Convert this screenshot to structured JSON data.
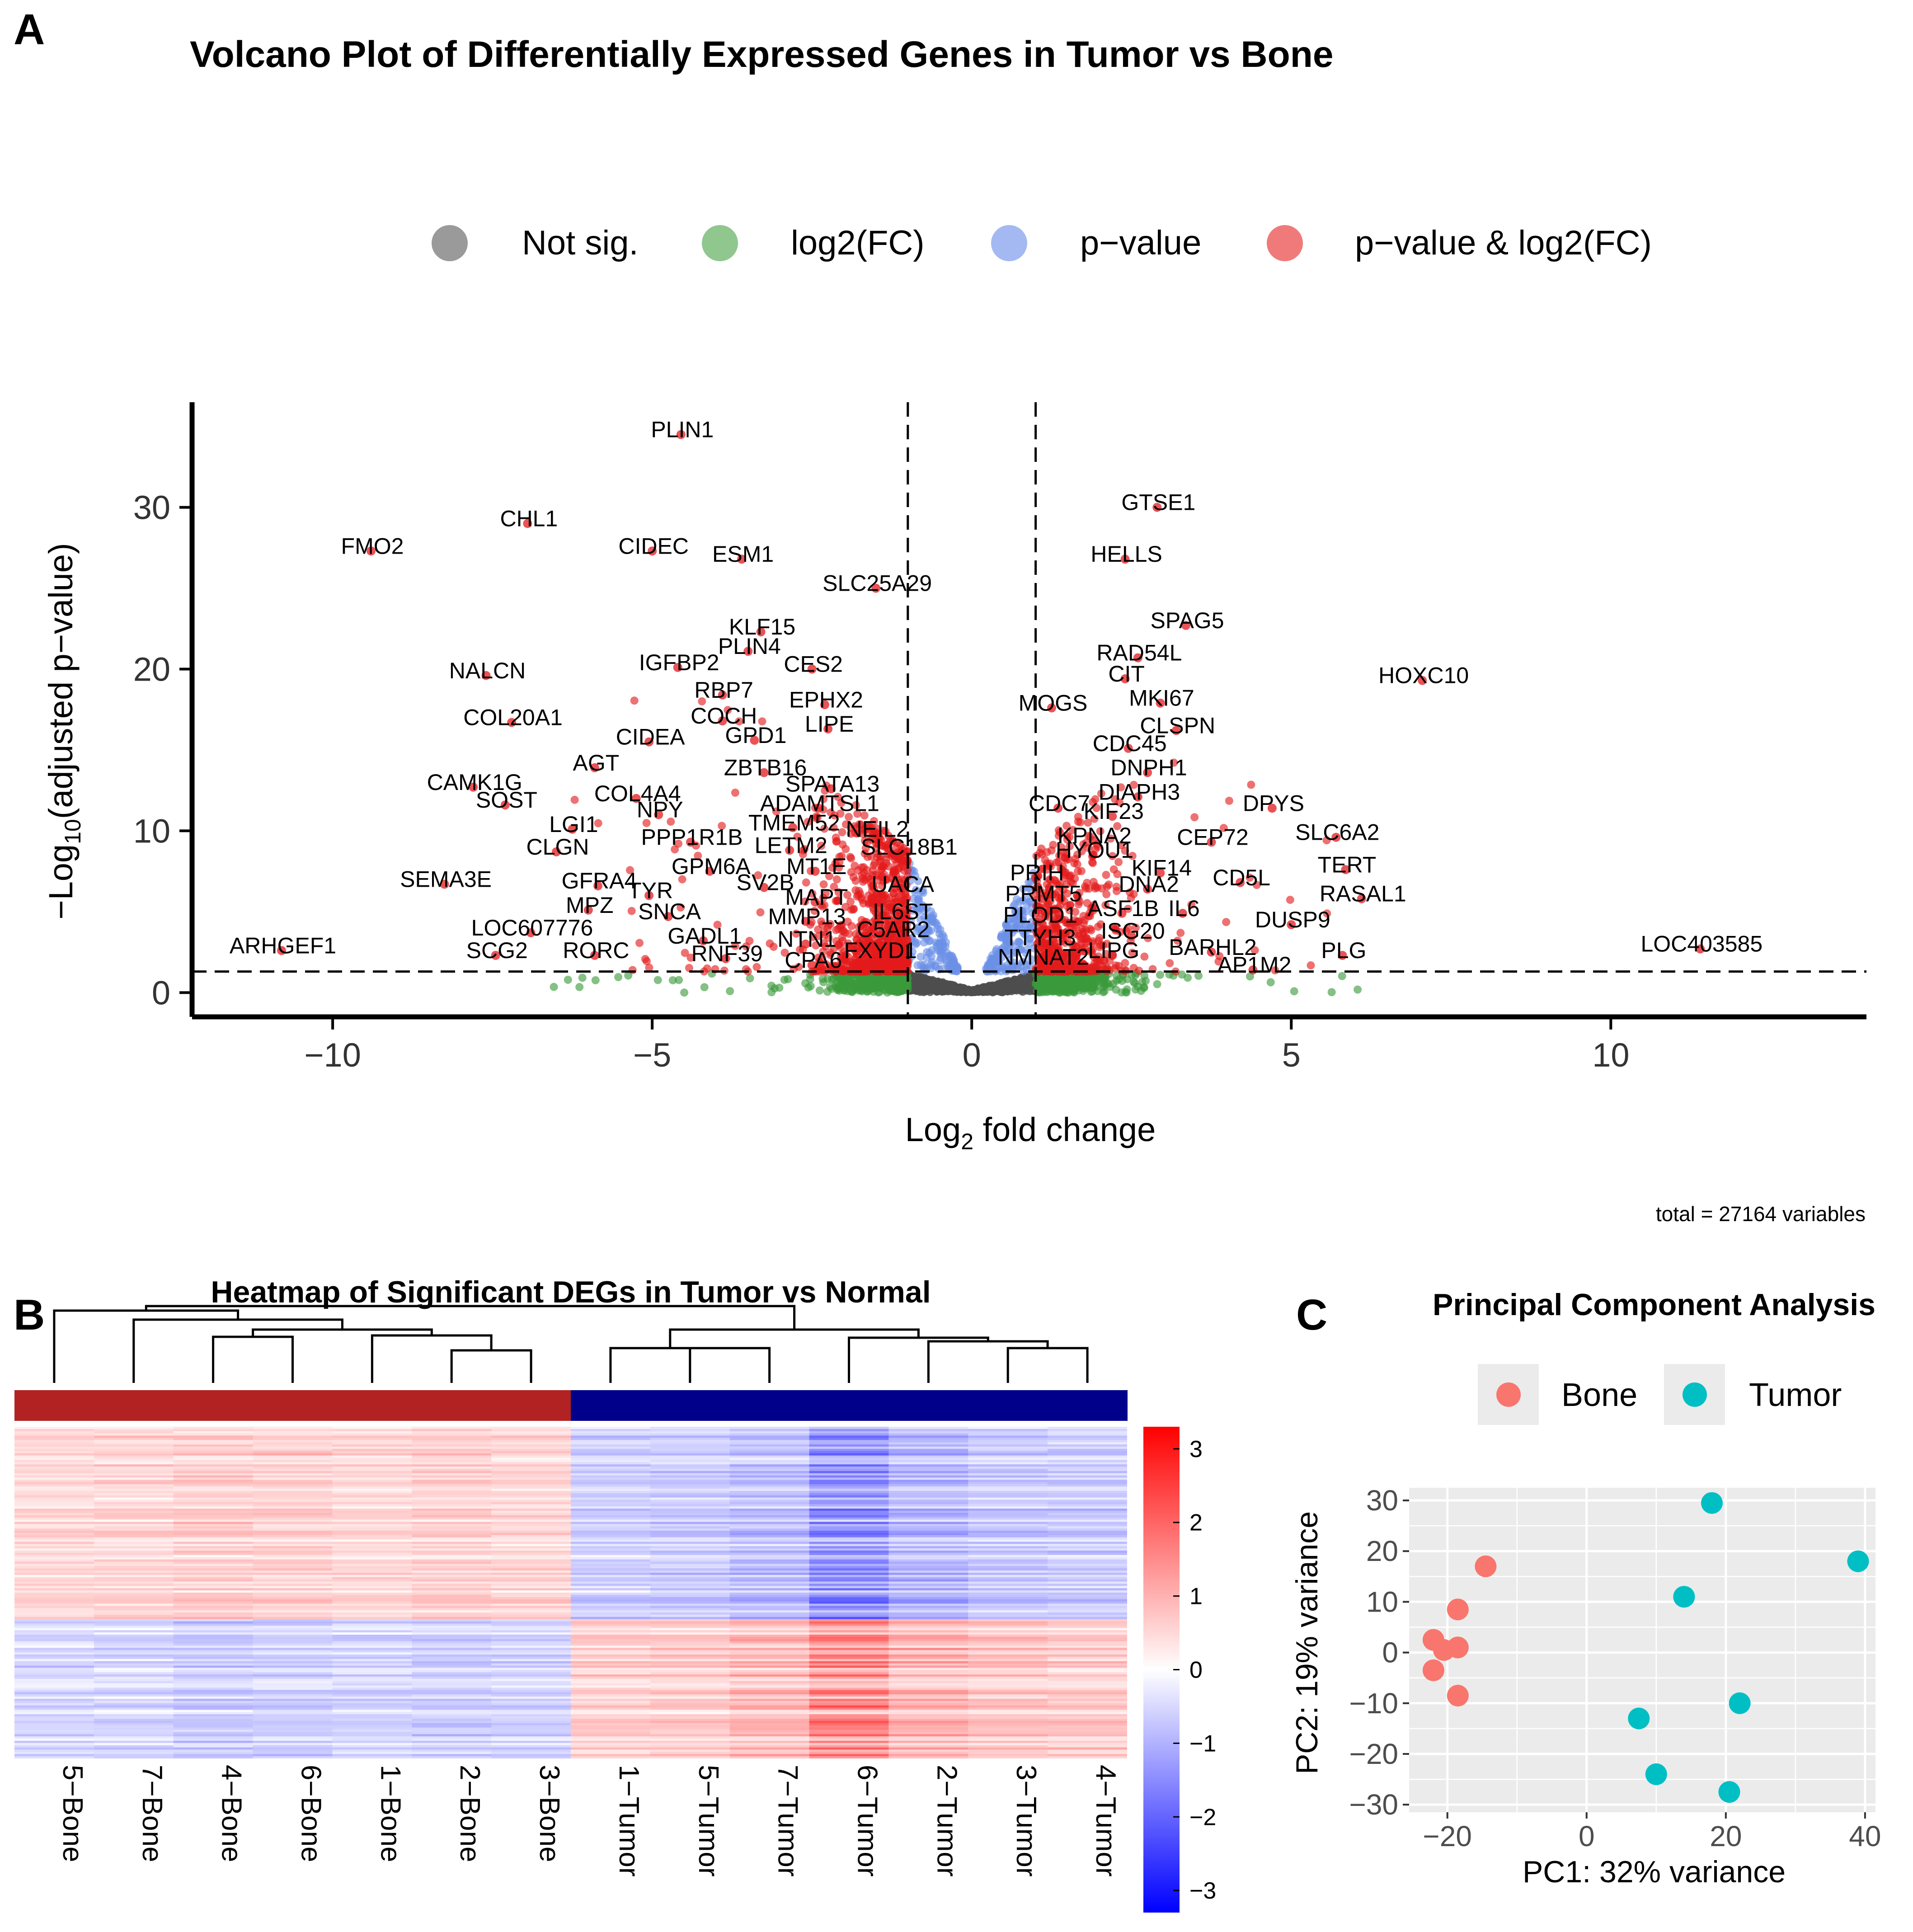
{
  "panels": {
    "a_label": "A",
    "b_label": "B",
    "c_label": "C"
  },
  "colors": {
    "not_sig": "#4d4d4d",
    "log2fc": "#3a9a3a",
    "pvalue": "#6a8fe6",
    "both": "#e31a1c",
    "bone": "#f8766d",
    "tumor": "#00bfc4",
    "bone_bar": "#b22222",
    "tumor_bar": "#00008b",
    "heat_high": "#ff0000",
    "heat_mid": "#ffffff",
    "heat_low": "#0000ff"
  },
  "chart_data": [
    {
      "type": "scatter",
      "subtype": "volcano",
      "title": "Volcano Plot of Differentially Expressed Genes in Tumor vs Bone",
      "xlabel_main": "Log",
      "xlabel_sub": "2",
      "xlabel_tail": " fold change",
      "ylabel_main": "−Log",
      "ylabel_sub": "10",
      "ylabel_tail": "(adjusted p−value)",
      "xlim": [
        -12.2,
        14.0
      ],
      "ylim": [
        -1.5,
        36.5
      ],
      "xticks": [
        -10,
        -5,
        0,
        5,
        10
      ],
      "xtick_labels": [
        "−10",
        "−5",
        "0",
        "5",
        "10"
      ],
      "yticks": [
        0,
        10,
        20,
        30
      ],
      "ytick_labels": [
        "0",
        "10",
        "20",
        "30"
      ],
      "fc_cutoff": 1,
      "p_cutoff": 1.3,
      "caption": "total = 27164 variables",
      "legend": [
        {
          "label": "Not sig.",
          "key": "not_sig"
        },
        {
          "label": "log2(FC)",
          "key": "log2fc"
        },
        {
          "label": "p−value",
          "key": "pvalue"
        },
        {
          "label": "p−value & log2(FC)",
          "key": "both"
        }
      ],
      "labeled_genes": [
        {
          "gene": "PLIN1",
          "x": -4.55,
          "y": 34.5
        },
        {
          "gene": "GTSE1",
          "x": 2.9,
          "y": 30.0
        },
        {
          "gene": "CHL1",
          "x": -6.95,
          "y": 29.0
        },
        {
          "gene": "FMO2",
          "x": -9.4,
          "y": 27.3
        },
        {
          "gene": "CIDEC",
          "x": -5.0,
          "y": 27.3
        },
        {
          "gene": "ESM1",
          "x": -3.6,
          "y": 26.8
        },
        {
          "gene": "HELLS",
          "x": 2.4,
          "y": 26.8
        },
        {
          "gene": "SLC25A29",
          "x": -1.5,
          "y": 25.0
        },
        {
          "gene": "KLF15",
          "x": -3.3,
          "y": 22.3
        },
        {
          "gene": "SPAG5",
          "x": 3.35,
          "y": 22.7
        },
        {
          "gene": "PLIN4",
          "x": -3.5,
          "y": 21.1
        },
        {
          "gene": "IGFBP2",
          "x": -4.6,
          "y": 20.1
        },
        {
          "gene": "RAD54L",
          "x": 2.6,
          "y": 20.7
        },
        {
          "gene": "NALCN",
          "x": -7.6,
          "y": 19.6
        },
        {
          "gene": "CES2",
          "x": -2.5,
          "y": 20.0
        },
        {
          "gene": "CIT",
          "x": 2.4,
          "y": 19.4
        },
        {
          "gene": "HOXC10",
          "x": 7.05,
          "y": 19.3
        },
        {
          "gene": "RBP7",
          "x": -3.9,
          "y": 18.4
        },
        {
          "gene": "EPHX2",
          "x": -2.3,
          "y": 17.8
        },
        {
          "gene": "MOGS",
          "x": 1.25,
          "y": 17.6
        },
        {
          "gene": "MKI67",
          "x": 2.95,
          "y": 17.9
        },
        {
          "gene": "COCH",
          "x": -3.9,
          "y": 16.8
        },
        {
          "gene": "COL20A1",
          "x": -7.2,
          "y": 16.7
        },
        {
          "gene": "LIPE",
          "x": -2.25,
          "y": 16.3
        },
        {
          "gene": "CLSPN",
          "x": 3.2,
          "y": 16.2
        },
        {
          "gene": "GPD1",
          "x": -3.4,
          "y": 15.6
        },
        {
          "gene": "CIDEA",
          "x": -5.05,
          "y": 15.5
        },
        {
          "gene": "CDC45",
          "x": 2.45,
          "y": 15.1
        },
        {
          "gene": "AGT",
          "x": -5.9,
          "y": 13.9
        },
        {
          "gene": "ZBTB16",
          "x": -3.25,
          "y": 13.6
        },
        {
          "gene": "DNPH1",
          "x": 2.75,
          "y": 13.6
        },
        {
          "gene": "CAMK1G",
          "x": -7.8,
          "y": 12.7
        },
        {
          "gene": "SPATA13",
          "x": -2.2,
          "y": 12.6
        },
        {
          "gene": "COL4A4",
          "x": -5.25,
          "y": 12.0
        },
        {
          "gene": "DIAPH3",
          "x": 2.6,
          "y": 12.1
        },
        {
          "gene": "SOST",
          "x": -7.3,
          "y": 11.6
        },
        {
          "gene": "ADAMTSL1",
          "x": -2.4,
          "y": 11.4
        },
        {
          "gene": "CDC7",
          "x": 1.35,
          "y": 11.4
        },
        {
          "gene": "DPYS",
          "x": 4.7,
          "y": 11.4
        },
        {
          "gene": "NPY",
          "x": -4.9,
          "y": 11.0
        },
        {
          "gene": "KIF23",
          "x": 2.2,
          "y": 10.9
        },
        {
          "gene": "LGI1",
          "x": -6.25,
          "y": 10.1
        },
        {
          "gene": "TMEM52",
          "x": -2.8,
          "y": 10.2
        },
        {
          "gene": "NEIL2",
          "x": -1.5,
          "y": 9.8
        },
        {
          "gene": "SLC6A2",
          "x": 5.7,
          "y": 9.6
        },
        {
          "gene": "KPNA2",
          "x": 1.9,
          "y": 9.4
        },
        {
          "gene": "CEP72",
          "x": 3.75,
          "y": 9.3
        },
        {
          "gene": "PPP1R1B",
          "x": -4.4,
          "y": 9.3
        },
        {
          "gene": "CLGN",
          "x": -6.5,
          "y": 8.7
        },
        {
          "gene": "LETM2",
          "x": -2.85,
          "y": 8.8
        },
        {
          "gene": "SLC18B1",
          "x": -1.0,
          "y": 8.7
        },
        {
          "gene": "HYOU1",
          "x": 1.9,
          "y": 8.5
        },
        {
          "gene": "GPM6A",
          "x": -4.1,
          "y": 7.5
        },
        {
          "gene": "MT1E",
          "x": -2.45,
          "y": 7.5
        },
        {
          "gene": "TERT",
          "x": 5.85,
          "y": 7.6
        },
        {
          "gene": "KIF14",
          "x": 2.95,
          "y": 7.4
        },
        {
          "gene": "PRIH",
          "x": 1.0,
          "y": 7.1
        },
        {
          "gene": "CD5L",
          "x": 4.2,
          "y": 6.8
        },
        {
          "gene": "SEMA3E",
          "x": -8.25,
          "y": 6.7
        },
        {
          "gene": "GFRA4",
          "x": -5.85,
          "y": 6.6
        },
        {
          "gene": "SV2B",
          "x": -3.25,
          "y": 6.5
        },
        {
          "gene": "UACA",
          "x": -1.1,
          "y": 6.4
        },
        {
          "gene": "DNA2",
          "x": 2.75,
          "y": 6.4
        },
        {
          "gene": "TYR",
          "x": -5.05,
          "y": 6.0
        },
        {
          "gene": "PRMT5",
          "x": 1.1,
          "y": 5.8
        },
        {
          "gene": "RASAL1",
          "x": 6.1,
          "y": 5.8
        },
        {
          "gene": "MPZ",
          "x": -6.0,
          "y": 5.1
        },
        {
          "gene": "MAPT",
          "x": -2.45,
          "y": 5.6
        },
        {
          "gene": "ASF1B",
          "x": 2.35,
          "y": 4.9
        },
        {
          "gene": "IL6",
          "x": 3.3,
          "y": 4.9
        },
        {
          "gene": "SNCA",
          "x": -4.75,
          "y": 4.7
        },
        {
          "gene": "IL6ST",
          "x": -1.1,
          "y": 4.7
        },
        {
          "gene": "PLOD1",
          "x": 1.05,
          "y": 4.5
        },
        {
          "gene": "MMP13",
          "x": -2.6,
          "y": 4.4
        },
        {
          "gene": "DUSP9",
          "x": 5.0,
          "y": 4.2
        },
        {
          "gene": "LOC607776",
          "x": -6.9,
          "y": 3.7
        },
        {
          "gene": "C5AR2",
          "x": -1.25,
          "y": 3.6
        },
        {
          "gene": "ISG20",
          "x": 2.5,
          "y": 3.5
        },
        {
          "gene": "GADL1",
          "x": -4.2,
          "y": 3.2
        },
        {
          "gene": "NTN1",
          "x": -2.6,
          "y": 3.0
        },
        {
          "gene": "TTYH3",
          "x": 1.05,
          "y": 3.1
        },
        {
          "gene": "LOC403585",
          "x": 11.4,
          "y": 2.7
        },
        {
          "gene": "ARHGEF1",
          "x": -10.8,
          "y": 2.6
        },
        {
          "gene": "BARHL2",
          "x": 3.75,
          "y": 2.5
        },
        {
          "gene": "FXYD1",
          "x": -1.45,
          "y": 2.3
        },
        {
          "gene": "PLG",
          "x": 5.8,
          "y": 2.3
        },
        {
          "gene": "SCG2",
          "x": -7.45,
          "y": 2.3
        },
        {
          "gene": "RORC",
          "x": -5.9,
          "y": 2.3
        },
        {
          "gene": "LIPG",
          "x": 2.2,
          "y": 2.3
        },
        {
          "gene": "RNF39",
          "x": -3.85,
          "y": 2.1
        },
        {
          "gene": "NMNAT2",
          "x": 1.1,
          "y": 1.9
        },
        {
          "gene": "CPA6",
          "x": -2.5,
          "y": 1.7
        },
        {
          "gene": "AP1M2",
          "x": 4.4,
          "y": 1.4
        }
      ]
    },
    {
      "type": "heatmap",
      "title": "Heatmap of Significant DEGs in Tumor vs Normal",
      "columns": [
        "5−Bone",
        "7−Bone",
        "4−Bone",
        "6−Bone",
        "1−Bone",
        "2−Bone",
        "3−Bone",
        "1−Tumor",
        "5−Tumor",
        "7−Tumor",
        "6−Tumor",
        "2−Tumor",
        "3−Tumor",
        "4−Tumor"
      ],
      "groups": [
        "Bone",
        "Bone",
        "Bone",
        "Bone",
        "Bone",
        "Bone",
        "Bone",
        "Tumor",
        "Tumor",
        "Tumor",
        "Tumor",
        "Tumor",
        "Tumor",
        "Tumor"
      ],
      "color_range": [
        -3.3,
        3.3
      ],
      "scale_ticks": [
        3,
        2,
        1,
        0,
        -1,
        -2,
        -3
      ],
      "scale_labels": [
        "3",
        "2",
        "1",
        "0",
        "−1",
        "−2",
        "−3"
      ],
      "column_strength": [
        0.85,
        0.95,
        1.1,
        1.0,
        0.9,
        1.05,
        0.95,
        0.85,
        0.9,
        1.15,
        1.9,
        1.25,
        1.0,
        0.9
      ],
      "row_blocks": [
        {
          "fraction": 0.58,
          "bone_sign": 1
        },
        {
          "fraction": 0.42,
          "bone_sign": -1
        }
      ]
    },
    {
      "type": "scatter",
      "title": "Principal Component Analysis",
      "xlabel": "PC1: 32% variance",
      "ylabel": "PC2: 19% variance",
      "xlim": [
        -25.5,
        41.5
      ],
      "ylim": [
        -31.5,
        32.5
      ],
      "xticks": [
        -20,
        0,
        20,
        40
      ],
      "xtick_labels": [
        "−20",
        "0",
        "20",
        "40"
      ],
      "yticks": [
        30,
        20,
        10,
        0,
        -10,
        -20,
        -30
      ],
      "ytick_labels": [
        "30",
        "20",
        "10",
        "0",
        "−10",
        "−20",
        "−30"
      ],
      "legend": [
        {
          "label": "Bone",
          "key": "bone"
        },
        {
          "label": "Tumor",
          "key": "tumor"
        }
      ],
      "series": [
        {
          "name": "Bone",
          "points": [
            [
              -14.5,
              17
            ],
            [
              -18.5,
              8.5
            ],
            [
              -22,
              2.5
            ],
            [
              -20.5,
              0.5
            ],
            [
              -18.5,
              1
            ],
            [
              -22,
              -3.5
            ],
            [
              -18.5,
              -8.5
            ]
          ]
        },
        {
          "name": "Tumor",
          "points": [
            [
              18,
              29.5
            ],
            [
              39,
              18
            ],
            [
              14,
              11
            ],
            [
              22,
              -10
            ],
            [
              7.5,
              -13
            ],
            [
              10,
              -24
            ],
            [
              20.5,
              -27.5
            ]
          ]
        }
      ]
    }
  ]
}
